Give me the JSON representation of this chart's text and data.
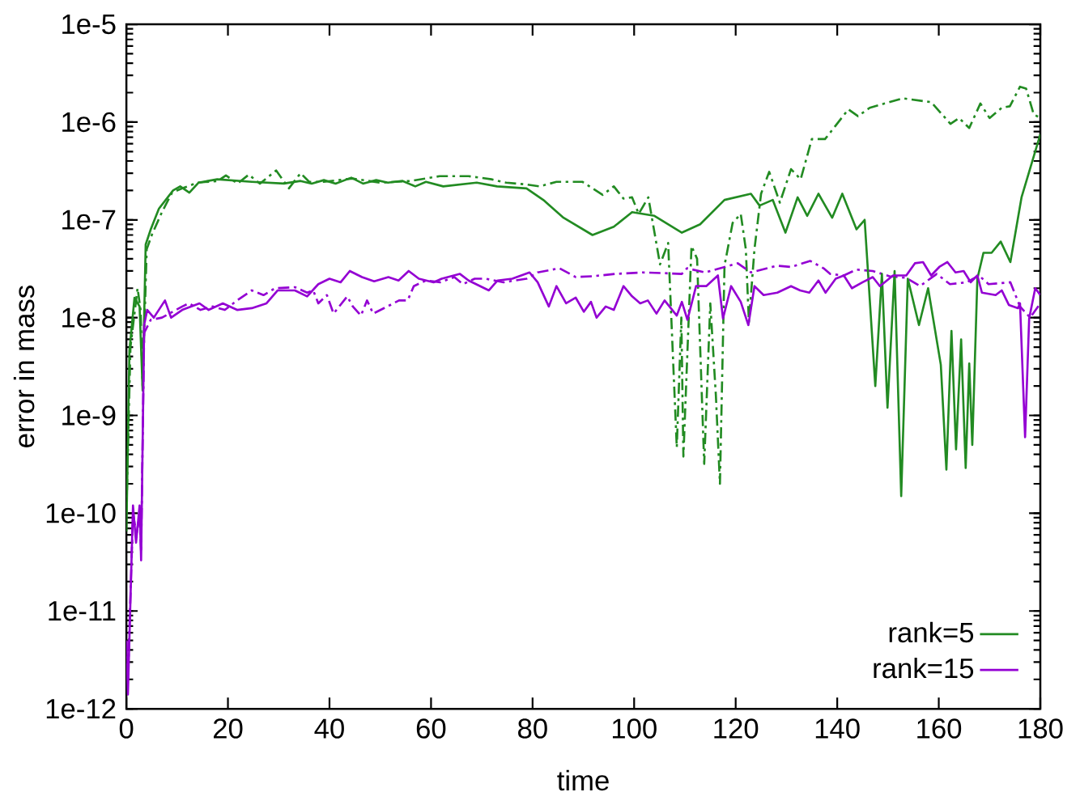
{
  "chart_data": {
    "type": "line",
    "xlabel": "time",
    "ylabel": "error in mass",
    "log": "y",
    "xlim": [
      0,
      180
    ],
    "xticks": [
      0,
      20,
      40,
      60,
      80,
      100,
      120,
      140,
      160,
      180
    ],
    "ylim": [
      1e-12,
      1e-05
    ],
    "yticks": [
      {
        "value": 1e-12,
        "label": "1e-12"
      },
      {
        "value": 1e-11,
        "label": "1e-11"
      },
      {
        "value": 1e-10,
        "label": "1e-10"
      },
      {
        "value": 1e-09,
        "label": "1e-9"
      },
      {
        "value": 1e-08,
        "label": "1e-8"
      },
      {
        "value": 1e-07,
        "label": "1e-7"
      },
      {
        "value": 1e-06,
        "label": "1e-6"
      },
      {
        "value": 1e-05,
        "label": "1e-5"
      }
    ],
    "legend": "bottom right",
    "series": [
      {
        "name": "rank=5",
        "color": "#228b22",
        "line_style": "solid",
        "x": [
          0,
          0.6,
          1.6,
          2.6,
          3.2,
          3.8,
          4.8,
          6.4,
          9.2,
          10.6,
          12.4,
          14.2,
          17.9,
          24.7,
          31,
          34.3,
          36.5,
          38.9,
          41.2,
          44.3,
          46.6,
          49.2,
          51.5,
          54.4,
          56.9,
          59,
          62.4,
          69,
          73,
          78.8,
          82.1,
          86.1,
          91.8,
          96,
          99.6,
          104,
          109.4,
          113,
          117.8,
          123,
          124.7,
          127.3,
          129.8,
          132.2,
          134.1,
          136.3,
          139,
          141,
          143.8,
          145.4,
          147.5,
          148.8,
          149.9,
          151.3,
          152.6,
          153.9,
          156.1,
          157.9,
          160.4,
          161.5,
          162.5,
          163.4,
          164.4,
          165.3,
          166,
          166.6,
          167.6,
          168.8,
          170.4,
          172.2,
          174.1,
          176.3,
          180
        ],
        "values": [
          6.5e-11,
          4.6e-09,
          1.6e-08,
          1.3e-08,
          1.8e-09,
          5.6e-08,
          8e-08,
          1.3e-07,
          2e-07,
          2.2e-07,
          1.9e-07,
          2.4e-07,
          2.6e-07,
          2.45e-07,
          2.35e-07,
          2.5e-07,
          2.35e-07,
          2.55e-07,
          2.35e-07,
          2.7e-07,
          2.35e-07,
          2.55e-07,
          2.4e-07,
          2.5e-07,
          2.2e-07,
          2.45e-07,
          2.2e-07,
          2.4e-07,
          2.2e-07,
          2.1e-07,
          1.6e-07,
          1.05e-07,
          7e-08,
          8.5e-08,
          1.2e-07,
          1.1e-07,
          7.4e-08,
          9e-08,
          1.6e-07,
          1.85e-07,
          1.4e-07,
          1.6e-07,
          7.4e-08,
          1.7e-07,
          1.1e-07,
          1.85e-07,
          1.05e-07,
          1.85e-07,
          8e-08,
          1e-07,
          2e-09,
          2.8e-08,
          1.2e-09,
          3e-08,
          1.5e-10,
          2.5e-08,
          8.4e-09,
          2e-08,
          3.3e-09,
          2.8e-10,
          7.3e-09,
          4.5e-10,
          6e-09,
          2.9e-10,
          3.4e-09,
          5e-10,
          2.5e-08,
          4.6e-08,
          4.6e-08,
          6e-08,
          3.7e-08,
          1.7e-07,
          7.5e-07
        ]
      },
      {
        "name": "rank=15",
        "color": "#9400d3",
        "line_style": "solid",
        "x": [
          0,
          0.3,
          1.3,
          1.9,
          2.6,
          2.9,
          3.5,
          4.1,
          5.4,
          7.6,
          8.8,
          11,
          14.4,
          16.2,
          19,
          21.8,
          24.7,
          27.6,
          29.8,
          33.2,
          35.6,
          37.8,
          40,
          42.2,
          44,
          46.4,
          48.8,
          51.6,
          53.6,
          55.6,
          57.6,
          60.5,
          62.1,
          65.7,
          67.4,
          71.4,
          73.1,
          76,
          79.4,
          81,
          83.2,
          84.7,
          86.6,
          88.5,
          90.1,
          91.5,
          92.6,
          94.4,
          96,
          97.9,
          99.6,
          101.2,
          102.7,
          104.4,
          106,
          108.4,
          109.4,
          110.5,
          112.2,
          114.2,
          116.5,
          117.5,
          119.1,
          121,
          122.5,
          123.7,
          125.5,
          128.2,
          130.9,
          132.7,
          134.5,
          136.3,
          137.7,
          139.7,
          141.3,
          142.9,
          145,
          147,
          148.4,
          151,
          153.6,
          155.3,
          156.9,
          158.5,
          160.1,
          161.7,
          163.3,
          164.9,
          166.3,
          167.6,
          168.5,
          171.2,
          172.4,
          173.8,
          175.6,
          176,
          177,
          177.8,
          179,
          180
        ],
        "values": [
          5e-12,
          1.4e-12,
          1.2e-10,
          5e-11,
          1.2e-10,
          3.3e-11,
          8.4e-09,
          1.2e-08,
          1e-08,
          1.5e-08,
          1e-08,
          1.2e-08,
          1.4e-08,
          1.2e-08,
          1.4e-08,
          1.2e-08,
          1.25e-08,
          1.4e-08,
          1.9e-08,
          1.9e-08,
          1.65e-08,
          2.2e-08,
          2.5e-08,
          2.3e-08,
          3e-08,
          2.6e-08,
          2.35e-08,
          2.6e-08,
          2.4e-08,
          3e-08,
          2.5e-08,
          2.3e-08,
          2.5e-08,
          2.8e-08,
          2.4e-08,
          1.9e-08,
          2.4e-08,
          2.5e-08,
          2.9e-08,
          2.3e-08,
          1.3e-08,
          2.1e-08,
          1.4e-08,
          1.6e-08,
          1.15e-08,
          1.45e-08,
          1e-08,
          1.3e-08,
          1.2e-08,
          2.1e-08,
          1.65e-08,
          1.4e-08,
          1.5e-08,
          1.1e-08,
          1.5e-08,
          1.05e-08,
          1.45e-08,
          9.5e-09,
          2.1e-08,
          2.1e-08,
          2.7e-08,
          9.8e-09,
          2.1e-08,
          1.45e-08,
          8.4e-09,
          2.1e-08,
          1.7e-08,
          1.8e-08,
          2.1e-08,
          1.9e-08,
          1.8e-08,
          2.4e-08,
          1.8e-08,
          2.5e-08,
          2.7e-08,
          2e-08,
          2.3e-08,
          2.6e-08,
          2.1e-08,
          2.7e-08,
          2.7e-08,
          3.6e-08,
          3.7e-08,
          2.7e-08,
          3.3e-08,
          3.7e-08,
          2.9e-08,
          3e-08,
          2.3e-08,
          2.7e-08,
          1.8e-08,
          1.7e-08,
          1.9e-08,
          1.35e-08,
          1.25e-08,
          1.4e-08,
          6e-10,
          9.8e-09,
          2e-08,
          1.7e-08
        ]
      },
      {
        "color": "#228b22",
        "line_style": "dashed",
        "x": [
          0,
          0.8,
          2.2,
          2.8,
          3.2,
          4,
          5,
          7,
          9,
          11,
          14,
          18,
          19.6,
          21.9,
          24.1,
          26.3,
          29.5,
          32,
          34.3,
          36,
          38.9,
          44.5,
          50,
          56,
          61.7,
          67.4,
          71.9,
          74.8,
          78.8,
          81.4,
          84.7,
          89.8,
          93.8,
          96,
          97.9,
          99.6,
          100.9,
          102.8,
          105.1,
          106.7,
          108.4,
          109.3,
          109.7,
          111.3,
          112.4,
          113.8,
          115,
          116.1,
          116.9,
          117.8,
          119.4,
          121,
          122,
          122.6,
          123.7,
          125,
          126.6,
          128.7,
          130.9,
          132.8,
          135,
          137.6,
          142.2,
          144.1,
          146.4,
          152.9,
          158.5,
          162.3,
          164,
          166,
          168.2,
          170,
          172.4,
          174,
          176,
          177.2,
          178.7,
          180
        ],
        "values": [
          1e-10,
          5e-09,
          2e-08,
          1.2e-08,
          2e-09,
          5e-08,
          7e-08,
          1.2e-07,
          1.9e-07,
          2.1e-07,
          2.4e-07,
          2.5e-07,
          2.85e-07,
          2.35e-07,
          2.9e-07,
          2.35e-07,
          3.2e-07,
          2.1e-07,
          3e-07,
          2.45e-07,
          2.45e-07,
          2.65e-07,
          2.4e-07,
          2.5e-07,
          2.8e-07,
          2.8e-07,
          2.6e-07,
          2.4e-07,
          2.3e-07,
          2.2e-07,
          2.45e-07,
          2.45e-07,
          1.8e-07,
          2.2e-07,
          1.65e-07,
          1.7e-07,
          1.15e-07,
          1.7e-07,
          3.5e-08,
          5.8e-08,
          4.7e-10,
          1e-08,
          3.8e-10,
          5.4e-08,
          4e-08,
          3.2e-10,
          1.4e-08,
          1.6e-09,
          2e-10,
          3.4e-08,
          9.3e-08,
          1.15e-07,
          5e-08,
          9e-09,
          5e-08,
          1.85e-07,
          3.1e-07,
          1.5e-07,
          3.3e-07,
          2.6e-07,
          6.7e-07,
          6.7e-07,
          1.35e-06,
          1.15e-06,
          1.4e-06,
          1.75e-06,
          1.6e-06,
          9.6e-07,
          1.1e-06,
          8.7e-07,
          1.55e-06,
          1.1e-06,
          1.4e-06,
          1.45e-06,
          2.3e-06,
          2.2e-06,
          1.2e-06,
          1.1e-06
        ]
      },
      {
        "color": "#9400d3",
        "line_style": "dashed",
        "x": [
          0,
          0.3,
          1.3,
          2,
          2.6,
          2.9,
          3.5,
          4.8,
          7,
          11,
          12.3,
          14.6,
          17,
          19.4,
          21.8,
          24.7,
          27,
          29.3,
          33.2,
          35.6,
          36.8,
          37.8,
          39.5,
          40.8,
          43.5,
          44.6,
          46.2,
          47.4,
          48.6,
          51.4,
          53.7,
          55.4,
          56.6,
          59,
          61.8,
          64.6,
          66.3,
          68.6,
          70.8,
          74.3,
          76.5,
          78.8,
          81,
          85.3,
          88.5,
          91.7,
          96.3,
          101.6,
          106,
          109.4,
          110.4,
          114,
          120.4,
          123,
          128.2,
          130.9,
          134.7,
          137.3,
          138.6,
          141.3,
          143.8,
          147,
          150.3,
          153.6,
          156.3,
          159.6,
          162.2,
          165.5,
          167.9,
          169.8,
          174.1,
          176,
          178,
          180
        ],
        "values": [
          5e-12,
          2e-12,
          1e-10,
          6e-11,
          1e-10,
          4e-11,
          7e-09,
          9.5e-09,
          1e-08,
          1.3e-08,
          1.4e-08,
          1.2e-08,
          1.3e-08,
          1.2e-08,
          1.5e-08,
          1.9e-08,
          1.7e-08,
          2e-08,
          2.05e-08,
          1.8e-08,
          1.9e-08,
          1.4e-08,
          1.7e-08,
          1.1e-08,
          1.65e-08,
          1.3e-08,
          1.05e-08,
          1.5e-08,
          1.1e-08,
          1.3e-08,
          1.5e-08,
          1.5e-08,
          2.1e-08,
          2.4e-08,
          2.3e-08,
          2.6e-08,
          2.2e-08,
          2.5e-08,
          2.5e-08,
          2.3e-08,
          2.4e-08,
          2.5e-08,
          2.9e-08,
          3.2e-08,
          2.6e-08,
          2.65e-08,
          2.8e-08,
          2.9e-08,
          2.85e-08,
          2.8e-08,
          3.2e-08,
          2.9e-08,
          3.6e-08,
          2.9e-08,
          3.4e-08,
          3.3e-08,
          3.8e-08,
          3.2e-08,
          2.8e-08,
          2.7e-08,
          3.1e-08,
          3e-08,
          2.65e-08,
          2.55e-08,
          2.1e-08,
          2.8e-08,
          2.2e-08,
          2.3e-08,
          2.7e-08,
          2.2e-08,
          2.3e-08,
          1.3e-08,
          1e-08,
          1.4e-08
        ]
      }
    ]
  }
}
